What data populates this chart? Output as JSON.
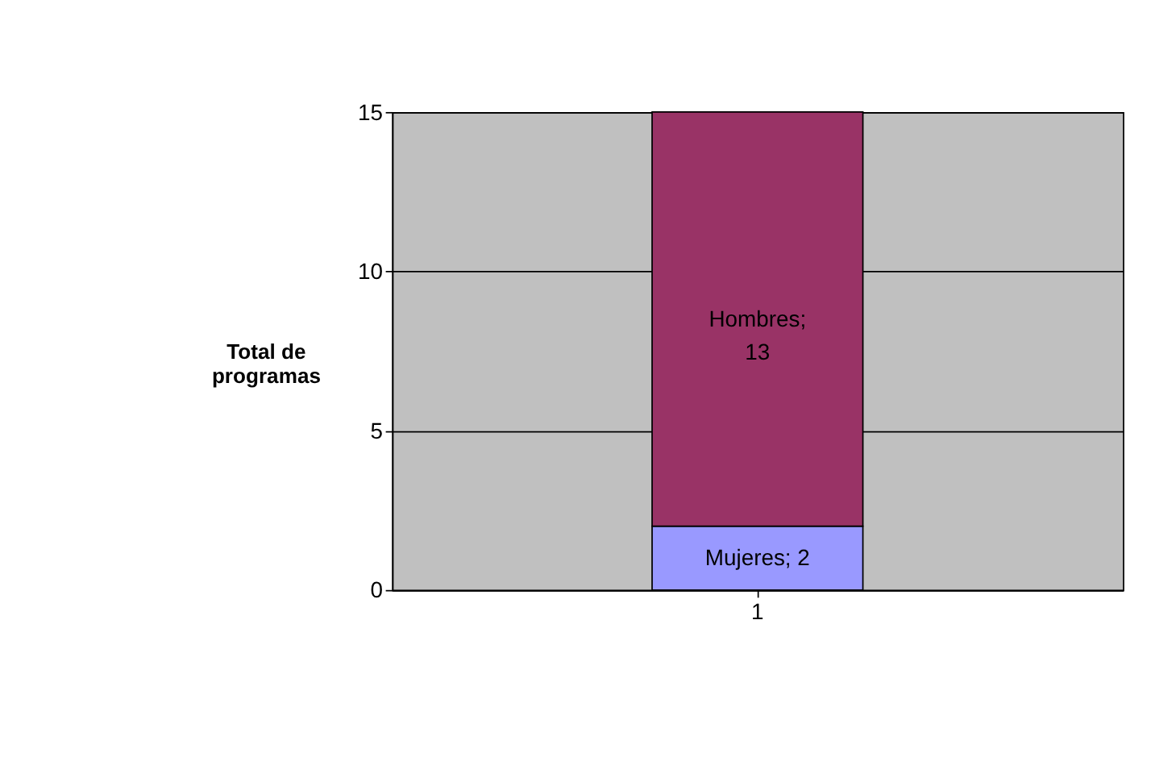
{
  "chart_data": {
    "type": "bar",
    "stacked": true,
    "categories": [
      "1"
    ],
    "ylabel": "Total de\nprogramas",
    "ylim": [
      0,
      15
    ],
    "yticks": [
      0,
      5,
      10,
      15
    ],
    "grid": "y",
    "series": [
      {
        "color": "#9999ff",
        "values": [
          2
        ],
        "value_labels": [
          "Mujeres; 2"
        ]
      },
      {
        "color": "#993366",
        "values": [
          13
        ],
        "value_labels": [
          "Hombres;\n13"
        ]
      }
    ]
  }
}
